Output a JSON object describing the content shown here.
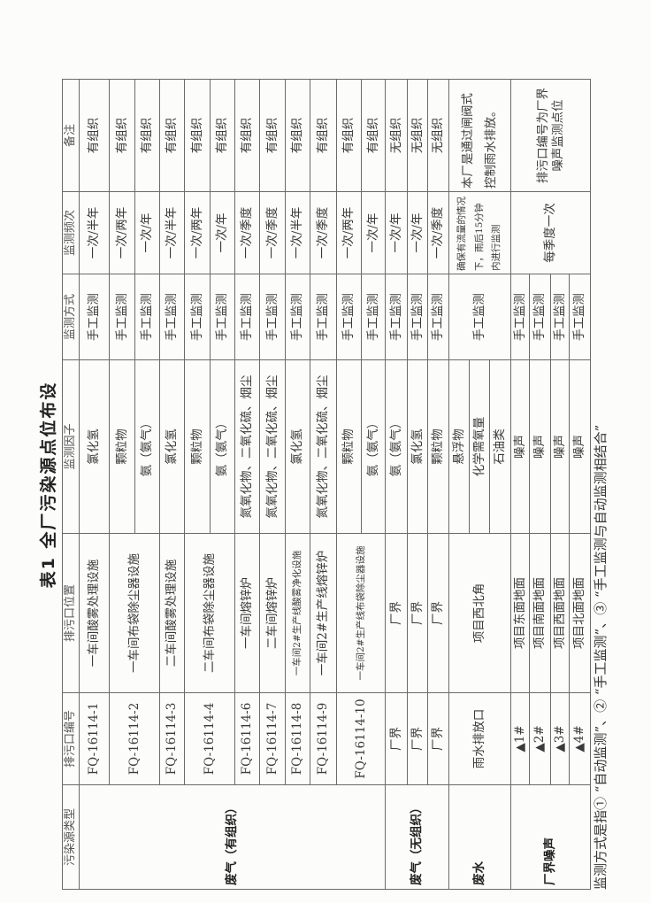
{
  "title": "表1  全厂污染源点位布设",
  "table": {
    "headers": [
      "污染源类型",
      "排污口编号",
      "排污口位置",
      "监测因子",
      "监测方式",
      "监测频次",
      "备注"
    ],
    "groups": [
      {
        "type": "废气（有组织）",
        "outlets": [
          {
            "id": "FQ-16114-1",
            "location": "一车间酸雾处理设施",
            "factors": [
              {
                "name": "氯化氢",
                "method": "手工监测",
                "frequency": "一次/半年",
                "remark": "有组织"
              }
            ]
          },
          {
            "id": "FQ-16114-2",
            "location": "一车间布袋除尘器设施",
            "factors": [
              {
                "name": "颗粒物",
                "method": "手工监测",
                "frequency": "一次/两年",
                "remark": "有组织"
              },
              {
                "name": "氨（氨气）",
                "method": "手工监测",
                "frequency": "一次/年",
                "remark": "有组织"
              }
            ]
          },
          {
            "id": "FQ-16114-3",
            "location": "二车间酸雾处理设施",
            "factors": [
              {
                "name": "氯化氢",
                "method": "手工监测",
                "frequency": "一次/半年",
                "remark": "有组织"
              }
            ]
          },
          {
            "id": "FQ-16114-4",
            "location": "二车间布袋除尘器设施",
            "factors": [
              {
                "name": "颗粒物",
                "method": "手工监测",
                "frequency": "一次/两年",
                "remark": "有组织"
              },
              {
                "name": "氨（氨气）",
                "method": "手工监测",
                "frequency": "一次/年",
                "remark": "有组织"
              }
            ]
          },
          {
            "id": "FQ-16114-6",
            "location": "一车间熔锌炉",
            "factors": [
              {
                "name": "氮氧化物、二氧化硫、烟尘",
                "method": "手工监测",
                "frequency": "一次/季度",
                "remark": "有组织"
              }
            ]
          },
          {
            "id": "FQ-16114-7",
            "location": "二车间熔锌炉",
            "factors": [
              {
                "name": "氮氧化物、二氧化硫、烟尘",
                "method": "手工监测",
                "frequency": "一次/季度",
                "remark": "有组织"
              }
            ]
          },
          {
            "id": "FQ-16114-8",
            "location": "一车间2#生产线酸雾净化设施",
            "small": true,
            "factors": [
              {
                "name": "氯化氢",
                "method": "手工监测",
                "frequency": "一次/半年",
                "remark": "有组织"
              }
            ]
          },
          {
            "id": "FQ-16114-9",
            "location": "一车间2#生产线熔锌炉",
            "factors": [
              {
                "name": "氮氧化物、二氧化硫、烟尘",
                "method": "手工监测",
                "frequency": "一次/季度",
                "remark": "有组织"
              }
            ]
          },
          {
            "id": "FQ-16114-10",
            "location": "一车间2#生产线布袋除尘器设施",
            "small": true,
            "factors": [
              {
                "name": "颗粒物",
                "method": "手工监测",
                "frequency": "一次/两年",
                "remark": "有组织"
              },
              {
                "name": "氨（氨气）",
                "method": "手工监测",
                "frequency": "一次/年",
                "remark": "有组织"
              }
            ]
          }
        ]
      },
      {
        "type": "废气（无组织）",
        "outlets": [
          {
            "id": "厂界",
            "location": "厂界",
            "factors": [
              {
                "name": "氨（氨气）",
                "method": "手工监测",
                "frequency": "一次/年",
                "remark": "无组织"
              }
            ]
          },
          {
            "id": "厂界",
            "location": "厂界",
            "factors": [
              {
                "name": "氯化氢",
                "method": "手工监测",
                "frequency": "一次/年",
                "remark": "无组织"
              }
            ]
          },
          {
            "id": "厂界",
            "location": "厂界",
            "factors": [
              {
                "name": "颗粒物",
                "method": "手工监测",
                "frequency": "一次/季度",
                "remark": "无组织"
              }
            ]
          }
        ]
      },
      {
        "type": "废水",
        "outlets": [
          {
            "id": "雨水排放口",
            "location": "项目西北角",
            "method": "手工监测",
            "frequency": "确保有流量的情况下，雨后15分钟内进行监测",
            "remark": "本厂是通过闸阀式控制雨水排放。",
            "factors": [
              {
                "name": "悬浮物"
              },
              {
                "name": "化学需氧量"
              },
              {
                "name": "石油类"
              }
            ]
          }
        ]
      },
      {
        "type": "厂界噪声",
        "frequency": "每季度一次",
        "remark": "排污口编号为厂界噪声监测点位",
        "outlets": [
          {
            "id": "▲1#",
            "location": "项目东面地面",
            "factors": [
              {
                "name": "噪声",
                "method": "手工监测"
              }
            ]
          },
          {
            "id": "▲2#",
            "location": "项目南面地面",
            "factors": [
              {
                "name": "噪声",
                "method": "手工监测"
              }
            ]
          },
          {
            "id": "▲3#",
            "location": "项目西面地面",
            "factors": [
              {
                "name": "噪声",
                "method": "手工监测"
              }
            ]
          },
          {
            "id": "▲4#",
            "location": "项目北面地面",
            "factors": [
              {
                "name": "噪声",
                "method": "手工监测"
              }
            ]
          }
        ]
      }
    ]
  },
  "footnote": "监测方式是指① “自动监测”、② “手工监测”、③ “手工监测与自动监测相结合”"
}
